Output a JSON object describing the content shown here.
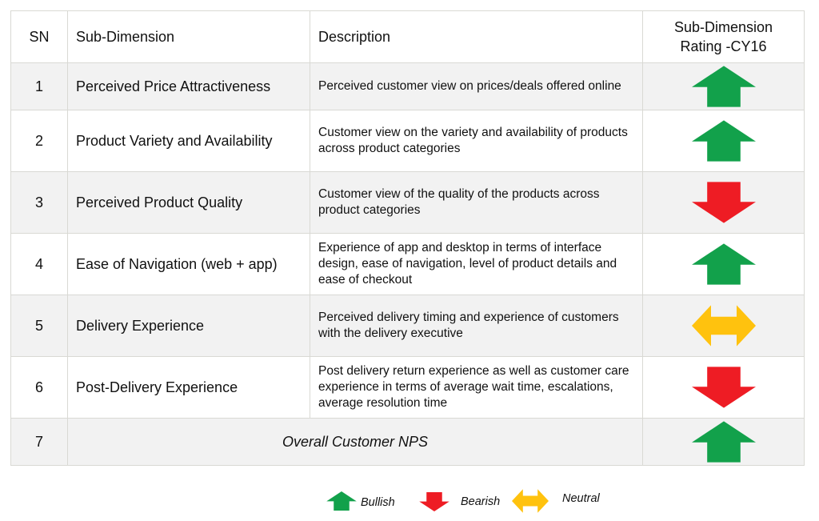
{
  "header": {
    "sn": "SN",
    "sub_dimension": "Sub-Dimension",
    "description": "Description",
    "rating_line1": "Sub-Dimension",
    "rating_line2": "Rating -CY16"
  },
  "rows": [
    {
      "sn": "1",
      "sub_dimension": "Perceived Price Attractiveness",
      "description": "Perceived customer view on prices/deals offered online",
      "rating": "Bullish"
    },
    {
      "sn": "2",
      "sub_dimension": "Product Variety and Availability",
      "description": "Customer view on the variety and availability of products across product categories",
      "rating": "Bullish"
    },
    {
      "sn": "3",
      "sub_dimension": "Perceived Product Quality",
      "description": "Customer view of the quality of the products across product categories",
      "rating": "Bearish"
    },
    {
      "sn": "4",
      "sub_dimension": "Ease of Navigation (web + app)",
      "description": "Experience of app and desktop in terms of interface design, ease of navigation, level of product details and ease of checkout",
      "rating": "Bullish"
    },
    {
      "sn": "5",
      "sub_dimension": "Delivery Experience",
      "description": "Perceived delivery timing and experience of customers with the delivery executive",
      "rating": "Neutral"
    },
    {
      "sn": "6",
      "sub_dimension": "Post-Delivery Experience",
      "description": "Post delivery return experience as well as customer care experience in terms of average wait time, escalations, average resolution time",
      "rating": "Bearish"
    }
  ],
  "overall": {
    "sn": "7",
    "label": "Overall Customer NPS",
    "rating": "Bullish"
  },
  "legend": {
    "bullish": "Bullish",
    "bearish": "Bearish",
    "neutral": "Neutral"
  },
  "colors": {
    "bullish": "#12a14b",
    "bearish": "#ee1c24",
    "neutral": "#ffc20e",
    "grid": "#d9d9d4",
    "shade": "#f2f2f2"
  },
  "icons": {
    "bullish": "arrow-up-icon",
    "bearish": "arrow-down-icon",
    "neutral": "arrow-left-right-icon"
  }
}
